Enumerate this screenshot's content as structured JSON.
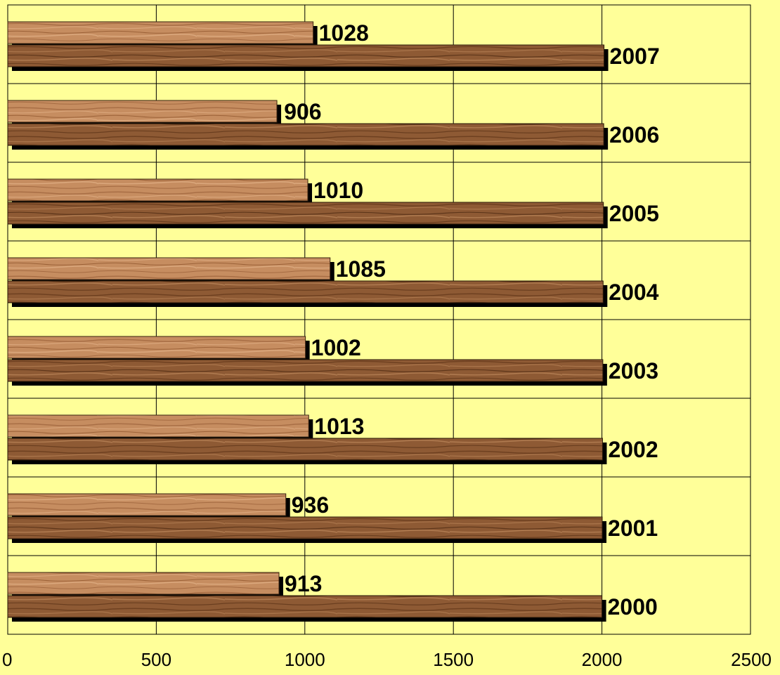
{
  "chart_data": {
    "type": "bar",
    "orientation": "horizontal",
    "categories": [
      "2000",
      "2001",
      "2002",
      "2003",
      "2004",
      "2005",
      "2006",
      "2007"
    ],
    "series": [
      {
        "values": [
          913,
          936,
          1013,
          1002,
          1085,
          1010,
          906,
          1028
        ]
      },
      {
        "values": [
          2000,
          2001,
          2002,
          2003,
          2004,
          2005,
          2006,
          2007
        ]
      }
    ],
    "data_labels": [
      {
        "category": "2000",
        "labels": [
          "913",
          "2000"
        ]
      },
      {
        "category": "2001",
        "labels": [
          "936",
          "2001"
        ]
      },
      {
        "category": "2002",
        "labels": [
          "1013",
          "2002"
        ]
      },
      {
        "category": "2003",
        "labels": [
          "1002",
          "2003"
        ]
      },
      {
        "category": "2004",
        "labels": [
          "1085",
          "2004"
        ]
      },
      {
        "category": "2005",
        "labels": [
          "1010",
          "2005"
        ]
      },
      {
        "category": "2006",
        "labels": [
          "906",
          "2006"
        ]
      },
      {
        "category": "2007",
        "labels": [
          "1028",
          "2007"
        ]
      }
    ],
    "x_ticks": [
      "0",
      "500",
      "1000",
      "1500",
      "2000",
      "2500"
    ],
    "xlim": [
      0,
      2500
    ],
    "grid": true,
    "legend": "none",
    "title": "",
    "xlabel": "",
    "ylabel": ""
  },
  "colors": {
    "background": "#ffff99",
    "grid": "#000000",
    "bar_light": "#c48a5c",
    "bar_dark": "#8a5530",
    "bar_shadow": "#000000"
  }
}
